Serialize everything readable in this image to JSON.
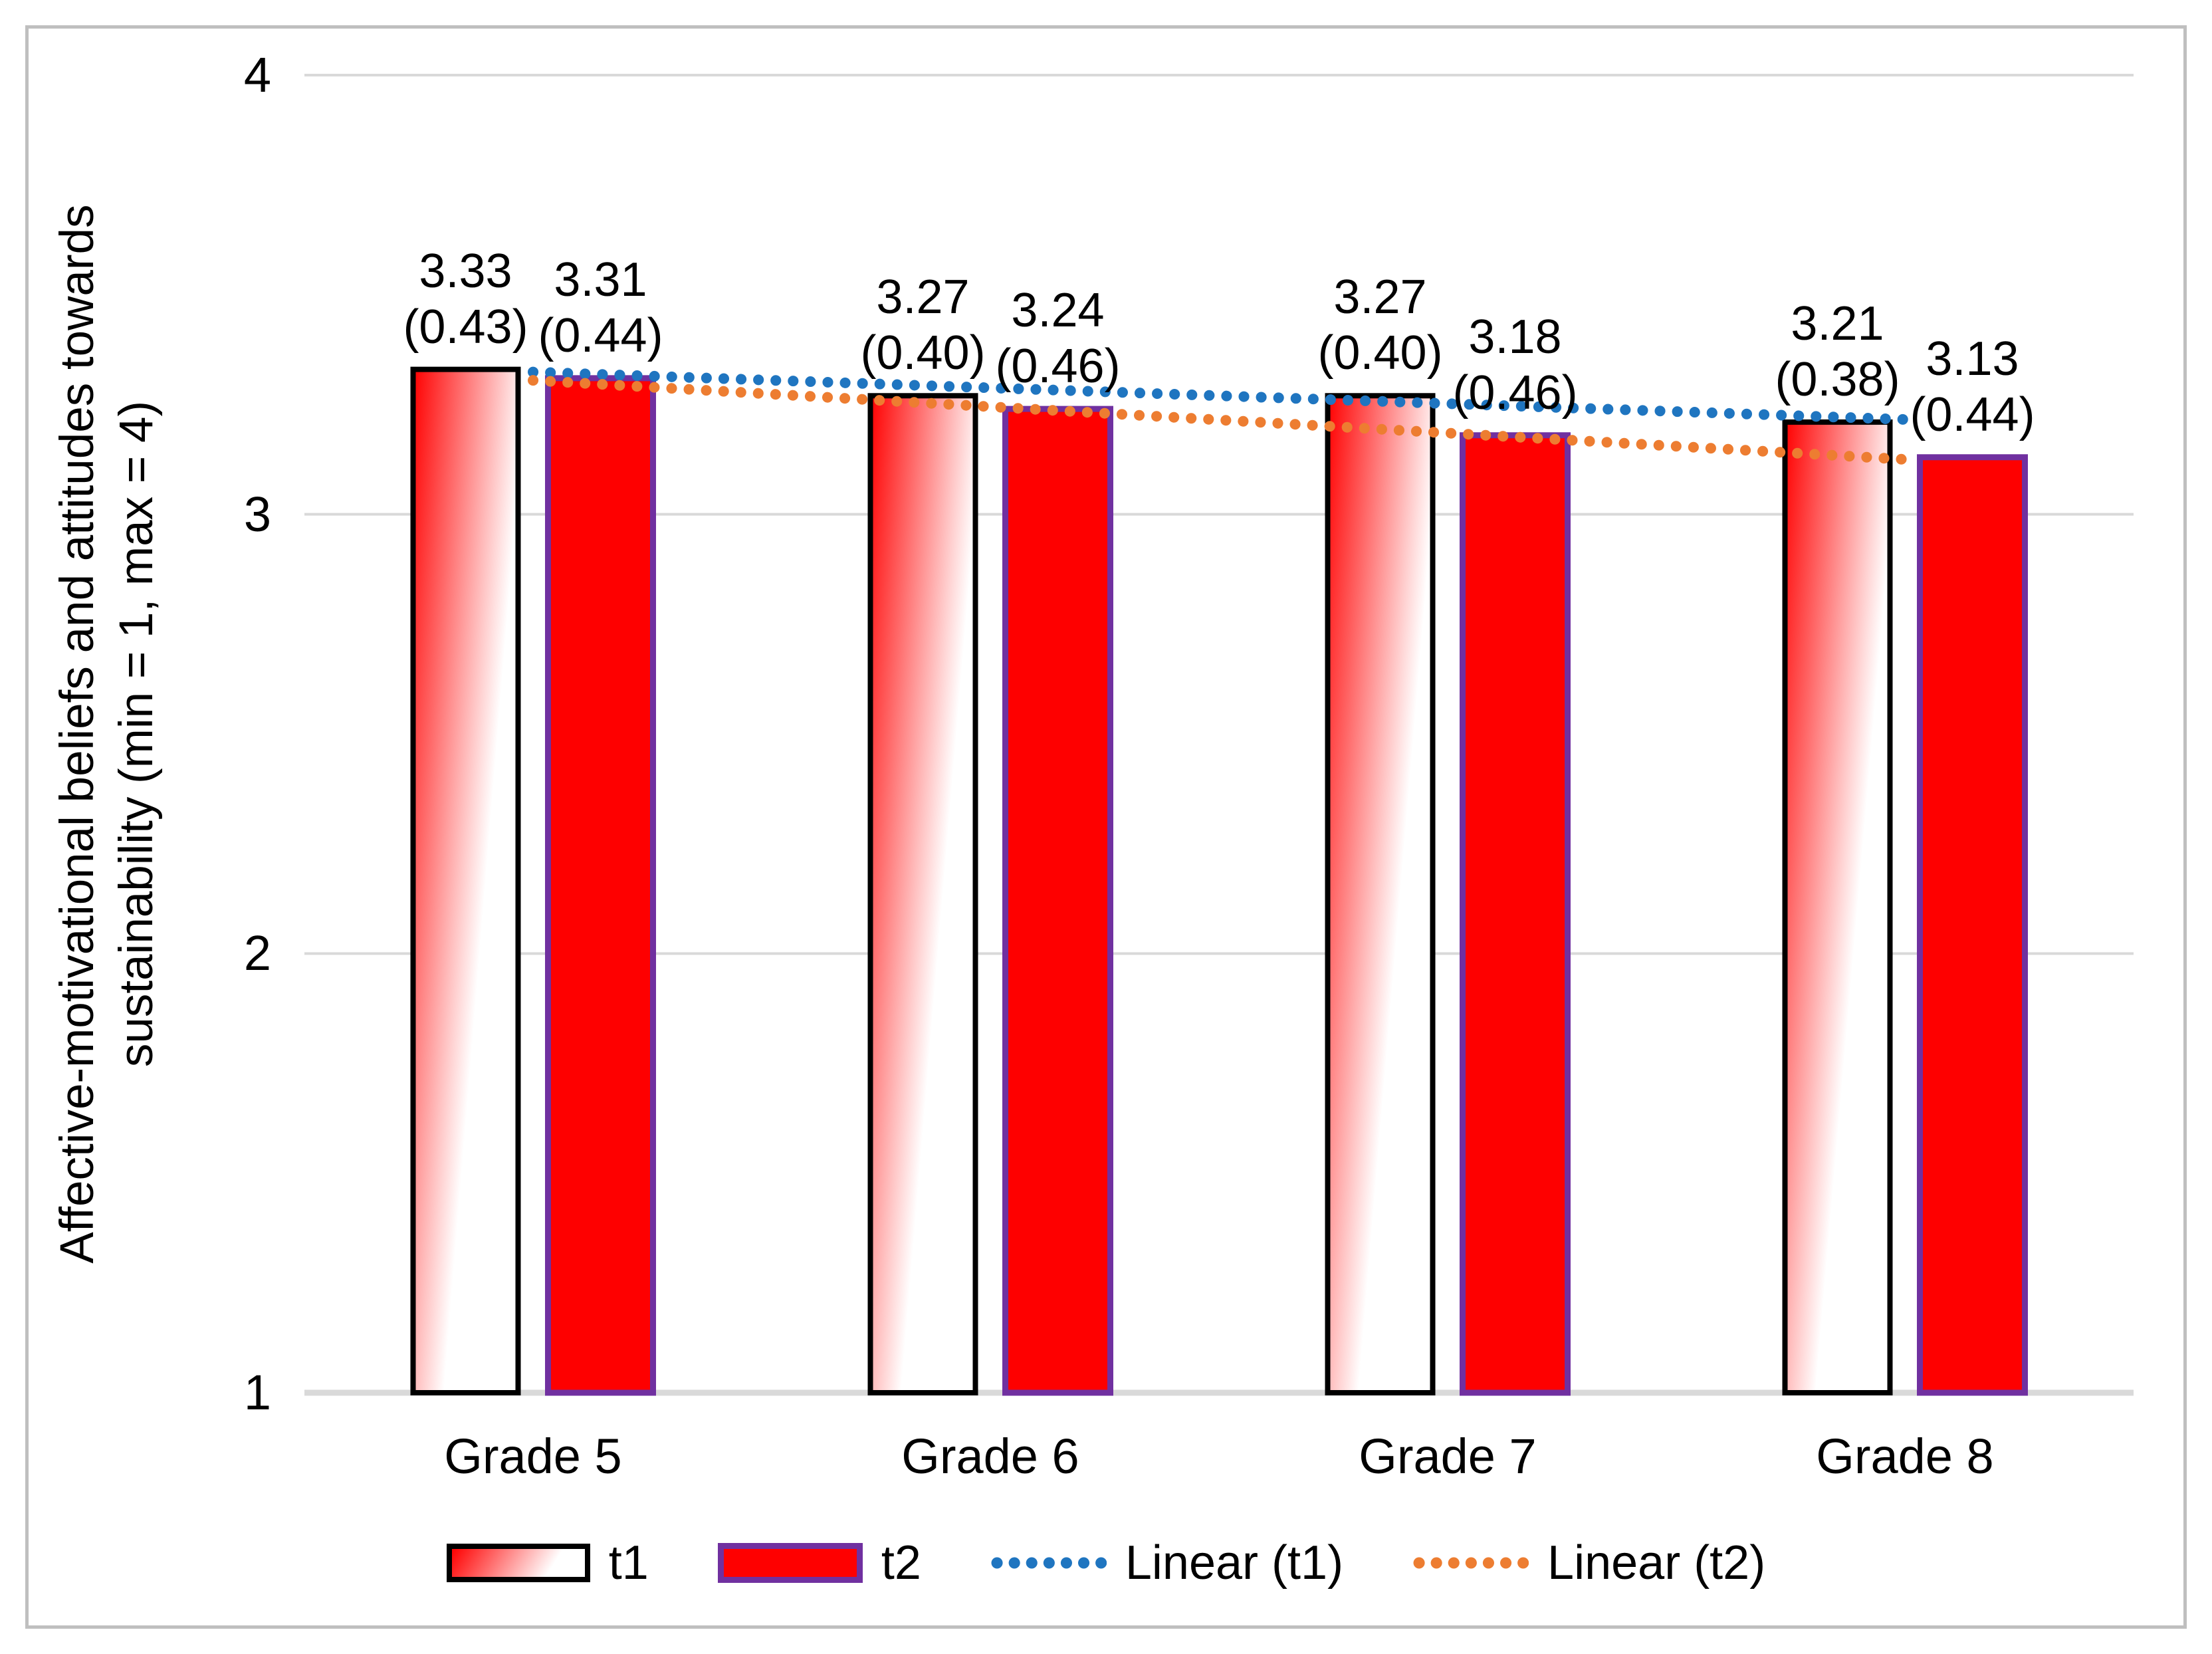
{
  "figure": {
    "background": "#ffffff",
    "frame_color": "#bfbfbf"
  },
  "colors": {
    "text": "#000000",
    "gridline": "#d9d9d9",
    "axis_line": "#d9d9d9",
    "t1_gradient_start": "#ff0000",
    "t1_gradient_mid": "#ff6666",
    "t1_gradient_end": "#ffffff",
    "t1_border": "#000000",
    "t2_fill": "#fe0000",
    "t2_border": "#7030a0",
    "trend_t1": "#1f75c0",
    "trend_t2": "#ed7d31"
  },
  "chart_data": {
    "type": "bar",
    "title": "",
    "xlabel": "",
    "ylabel_line1": "Affective-motivational beliefs and attitudes towards",
    "ylabel_line2": "sustainability (min = 1, max = 4)",
    "categories": [
      "Grade 5",
      "Grade 6",
      "Grade 7",
      "Grade 8"
    ],
    "series": [
      {
        "name": "t1",
        "values": [
          3.33,
          3.27,
          3.27,
          3.21
        ],
        "sd": [
          0.43,
          0.4,
          0.4,
          0.38
        ],
        "value_labels": [
          "3.33",
          "3.27",
          "3.27",
          "3.21"
        ],
        "sd_labels": [
          "(0.43)",
          "(0.40)",
          "(0.40)",
          "(0.38)"
        ]
      },
      {
        "name": "t2",
        "values": [
          3.31,
          3.24,
          3.18,
          3.13
        ],
        "sd": [
          0.44,
          0.46,
          0.46,
          0.44
        ],
        "value_labels": [
          "3.31",
          "3.24",
          "3.18",
          "3.13"
        ],
        "sd_labels": [
          "(0.44)",
          "(0.46)",
          "(0.46)",
          "(0.44)"
        ]
      }
    ],
    "trendlines": [
      {
        "name": "Linear (t1)",
        "series": "t1",
        "color_key": "trend_t1",
        "endpoints": [
          3.324,
          3.216
        ]
      },
      {
        "name": "Linear (t2)",
        "series": "t2",
        "color_key": "trend_t2",
        "endpoints": [
          3.305,
          3.125
        ]
      }
    ],
    "ylim": [
      1,
      4
    ],
    "ytick_values": [
      4,
      3,
      2,
      1
    ],
    "ytick_labels": [
      "4",
      "3",
      "2",
      "1"
    ],
    "grid": "horizontal",
    "legend_position": "bottom",
    "legend": [
      "t1",
      "t2",
      "Linear (t1)",
      "Linear (t2)"
    ]
  }
}
